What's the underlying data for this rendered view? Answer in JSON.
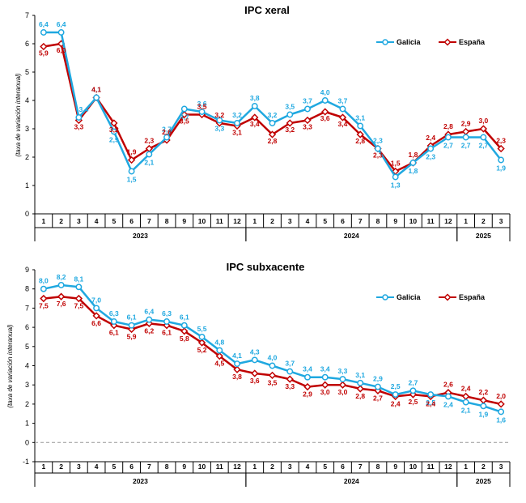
{
  "chart_data": [
    {
      "type": "line",
      "title": "IPC xeral",
      "ylabel": "(taxa de variación interanual)",
      "ylim": [
        0,
        7
      ],
      "yticks": [
        0,
        1,
        2,
        3,
        4,
        5,
        6,
        7
      ],
      "categories": [
        "1",
        "2",
        "3",
        "4",
        "5",
        "6",
        "7",
        "8",
        "9",
        "10",
        "11",
        "12",
        "1",
        "2",
        "3",
        "4",
        "5",
        "6",
        "7",
        "8",
        "9",
        "10",
        "11",
        "12",
        "1",
        "2",
        "3"
      ],
      "year_groups": [
        {
          "label": "2023",
          "start": 0,
          "count": 12
        },
        {
          "label": "2024",
          "start": 12,
          "count": 12
        },
        {
          "label": "2025",
          "start": 24,
          "count": 3
        }
      ],
      "legend_position": "top-right",
      "grid": false,
      "series": [
        {
          "name": "Galicia",
          "color": "#1fa8e0",
          "marker": "circle",
          "values": [
            6.4,
            6.4,
            3.4,
            4.1,
            2.9,
            1.5,
            2.1,
            2.7,
            3.7,
            3.6,
            3.3,
            3.2,
            3.8,
            3.2,
            3.5,
            3.7,
            4.0,
            3.7,
            3.1,
            2.3,
            1.3,
            1.8,
            2.3,
            2.7,
            2.7,
            2.7,
            1.9
          ]
        },
        {
          "name": "España",
          "color": "#c00000",
          "marker": "diamond",
          "values": [
            5.9,
            6.0,
            3.3,
            4.1,
            3.2,
            1.9,
            2.3,
            2.6,
            3.5,
            3.5,
            3.2,
            3.1,
            3.4,
            2.8,
            3.2,
            3.3,
            3.6,
            3.4,
            2.8,
            2.3,
            1.5,
            1.8,
            2.4,
            2.8,
            2.9,
            3.0,
            2.3
          ]
        }
      ],
      "data_labels": {
        "Galicia": [
          "6,4",
          "6,4",
          "3,4",
          "4,1",
          "2,9",
          "1,5",
          "2,1",
          "2,7",
          "3,7",
          "3,6",
          "3,3",
          "3,2",
          "3,8",
          "3,2",
          "3,5",
          "3,7",
          "4,0",
          "3,7",
          "3,1",
          "2,3",
          "1,3",
          "1,8",
          "2,3",
          "2,7",
          "2,7",
          "2,7",
          "1,9"
        ],
        "España": [
          "5,9",
          "6,0",
          "3,3",
          "4,1",
          "3,2",
          "1,9",
          "2,3",
          "2,6",
          "3,5",
          "3,5",
          "3,2",
          "3,1",
          "3,4",
          "2,8",
          "3,2",
          "3,3",
          "3,6",
          "3,4",
          "2,8",
          "2,3",
          "1,5",
          "1,8",
          "2,4",
          "2,8",
          "2,9",
          "3,0",
          "2,3"
        ]
      }
    },
    {
      "type": "line",
      "title": "IPC subxacente",
      "ylabel": "(taxa de variación interanual)",
      "ylim": [
        -1,
        9
      ],
      "yticks": [
        -1,
        0,
        1,
        2,
        3,
        4,
        5,
        6,
        7,
        8,
        9
      ],
      "reference_line": 0,
      "categories": [
        "1",
        "2",
        "3",
        "4",
        "5",
        "6",
        "7",
        "8",
        "9",
        "10",
        "11",
        "12",
        "1",
        "2",
        "3",
        "4",
        "5",
        "6",
        "7",
        "8",
        "9",
        "10",
        "11",
        "12",
        "1",
        "2",
        "3"
      ],
      "year_groups": [
        {
          "label": "2023",
          "start": 0,
          "count": 12
        },
        {
          "label": "2024",
          "start": 12,
          "count": 12
        },
        {
          "label": "2025",
          "start": 24,
          "count": 3
        }
      ],
      "legend_position": "top-right",
      "grid": false,
      "series": [
        {
          "name": "Galicia",
          "color": "#1fa8e0",
          "marker": "circle",
          "values": [
            8.0,
            8.2,
            8.1,
            7.0,
            6.3,
            6.1,
            6.4,
            6.3,
            6.1,
            5.5,
            4.8,
            4.1,
            4.3,
            4.0,
            3.7,
            3.4,
            3.4,
            3.3,
            3.1,
            2.9,
            2.5,
            2.7,
            2.5,
            2.4,
            2.1,
            1.9,
            1.6
          ]
        },
        {
          "name": "España",
          "color": "#c00000",
          "marker": "diamond",
          "values": [
            7.5,
            7.6,
            7.5,
            6.6,
            6.1,
            5.9,
            6.2,
            6.1,
            5.8,
            5.2,
            4.5,
            3.8,
            3.6,
            3.5,
            3.3,
            2.9,
            3.0,
            3.0,
            2.8,
            2.7,
            2.4,
            2.5,
            2.4,
            2.6,
            2.4,
            2.2,
            2.0
          ]
        }
      ],
      "data_labels": {
        "Galicia": [
          "8,0",
          "8,2",
          "8,1",
          "7,0",
          "6,3",
          "6,1",
          "6,4",
          "6,3",
          "6,1",
          "5,5",
          "4,8",
          "4,1",
          "4,3",
          "4,0",
          "3,7",
          "3,4",
          "3,4",
          "3,3",
          "3,1",
          "2,9",
          "2,5",
          "2,7",
          "2,5",
          "2,4",
          "2,1",
          "1,9",
          "1,6"
        ],
        "España": [
          "7,5",
          "7,6",
          "7,5",
          "6,6",
          "6,1",
          "5,9",
          "6,2",
          "6,1",
          "5,8",
          "5,2",
          "4,5",
          "3,8",
          "3,6",
          "3,5",
          "3,3",
          "2,9",
          "3,0",
          "3,0",
          "2,8",
          "2,7",
          "2,4",
          "2,5",
          "2,4",
          "2,6",
          "2,4",
          "2,2",
          "2,0"
        ]
      }
    }
  ]
}
